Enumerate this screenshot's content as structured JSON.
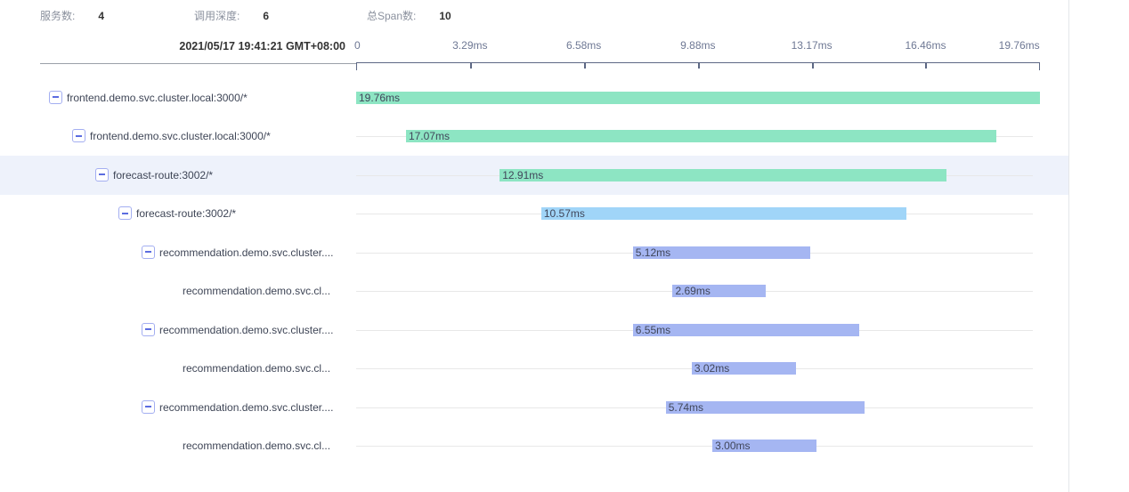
{
  "header": {
    "stats": [
      {
        "key": "services",
        "label": "服务数:",
        "value": "4"
      },
      {
        "key": "call-depth",
        "label": "调用深度:",
        "value": "6"
      },
      {
        "key": "total-spans",
        "label": "总Span数:",
        "value": "10"
      }
    ],
    "timestamp": "2021/05/17 19:41:21 GMT+08:00"
  },
  "timeline": {
    "ticks": [
      {
        "label": "0",
        "ms": 0
      },
      {
        "label": "3.29ms",
        "ms": 3.29
      },
      {
        "label": "6.58ms",
        "ms": 6.58
      },
      {
        "label": "9.88ms",
        "ms": 9.88
      },
      {
        "label": "13.17ms",
        "ms": 13.17
      },
      {
        "label": "16.46ms",
        "ms": 16.46
      },
      {
        "label": "19.76ms",
        "ms": 19.76
      }
    ],
    "total_ms": 19.76
  },
  "colors": {
    "green": "#8de5c3",
    "sky": "#a0d5f8",
    "periwinkle": "#a5b6f2",
    "highlight": "#eef2fb"
  },
  "spans": [
    {
      "name": "frontend.demo.svc.cluster.local:3000/*",
      "depth": 0,
      "toggle": true,
      "duration_label": "19.76ms",
      "start_ms": 0,
      "duration_ms": 19.76,
      "color": "green",
      "highlighted": false
    },
    {
      "name": "frontend.demo.svc.cluster.local:3000/*",
      "depth": 1,
      "toggle": true,
      "duration_label": "17.07ms",
      "start_ms": 1.44,
      "duration_ms": 17.07,
      "color": "green",
      "highlighted": false
    },
    {
      "name": "forecast-route:3002/*",
      "depth": 2,
      "toggle": true,
      "duration_label": "12.91ms",
      "start_ms": 4.15,
      "duration_ms": 12.91,
      "color": "green",
      "highlighted": true
    },
    {
      "name": "forecast-route:3002/*",
      "depth": 3,
      "toggle": true,
      "duration_label": "10.57ms",
      "start_ms": 5.35,
      "duration_ms": 10.57,
      "color": "sky",
      "highlighted": false
    },
    {
      "name": "recommendation.demo.svc.cluster....",
      "depth": 4,
      "toggle": true,
      "duration_label": "5.12ms",
      "start_ms": 8.0,
      "duration_ms": 5.12,
      "color": "periwinkle",
      "highlighted": false
    },
    {
      "name": "recommendation.demo.svc.cl...",
      "depth": 5,
      "toggle": false,
      "duration_label": "2.69ms",
      "start_ms": 9.15,
      "duration_ms": 2.69,
      "color": "periwinkle",
      "highlighted": false
    },
    {
      "name": "recommendation.demo.svc.cluster....",
      "depth": 4,
      "toggle": true,
      "duration_label": "6.55ms",
      "start_ms": 8.0,
      "duration_ms": 6.55,
      "color": "periwinkle",
      "highlighted": false
    },
    {
      "name": "recommendation.demo.svc.cl...",
      "depth": 5,
      "toggle": false,
      "duration_label": "3.02ms",
      "start_ms": 9.7,
      "duration_ms": 3.02,
      "color": "periwinkle",
      "highlighted": false
    },
    {
      "name": "recommendation.demo.svc.cluster....",
      "depth": 4,
      "toggle": true,
      "duration_label": "5.74ms",
      "start_ms": 8.95,
      "duration_ms": 5.74,
      "color": "periwinkle",
      "highlighted": false
    },
    {
      "name": "recommendation.demo.svc.cl...",
      "depth": 5,
      "toggle": false,
      "duration_label": "3.00ms",
      "start_ms": 10.3,
      "duration_ms": 3.0,
      "color": "periwinkle",
      "highlighted": false
    }
  ]
}
